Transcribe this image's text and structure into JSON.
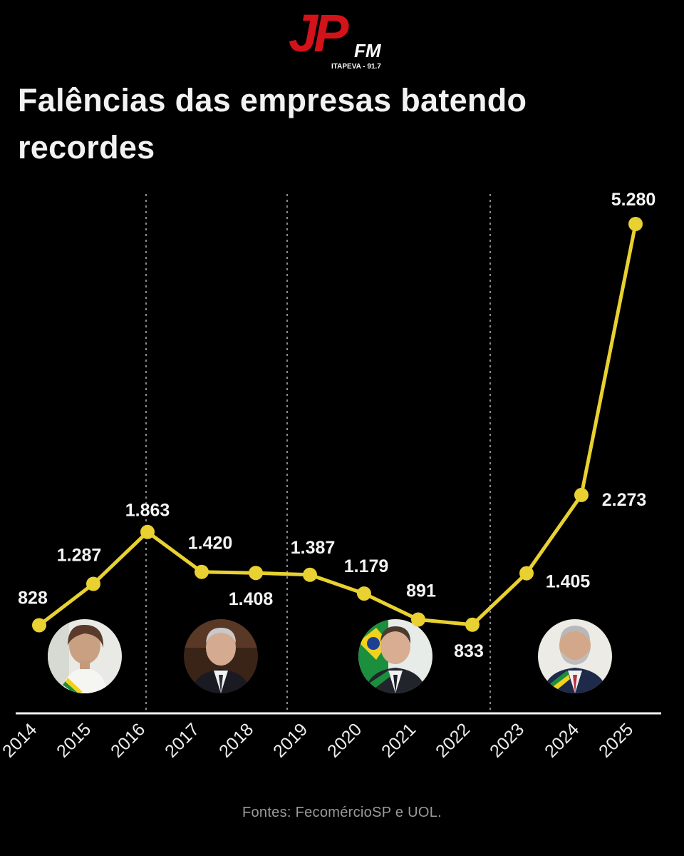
{
  "logo": {
    "letters": "JP",
    "fm": "FM",
    "station": "ITAPEVA - 91.7"
  },
  "title": "Falências das empresas batendo recordes",
  "source": "Fontes: FecomércioSP e UOL.",
  "colors": {
    "line": "#e8d130",
    "background": "#000000",
    "logo_red": "#d3121a"
  },
  "chart_data": {
    "type": "line",
    "title": "Falências das empresas batendo recordes",
    "categories": [
      "2014",
      "2015",
      "2016",
      "2017",
      "2018",
      "2019",
      "2020",
      "2021",
      "2022",
      "2023",
      "2024",
      "2025"
    ],
    "series": [
      {
        "values": [
          828,
          1287,
          1863,
          1420,
          1408,
          1387,
          1179,
          891,
          833,
          1405,
          2273,
          5280
        ]
      }
    ],
    "value_labels": [
      "828",
      "1.287",
      "1.863",
      "1.420",
      "1.408",
      "1.387",
      "1.179",
      "891",
      "833",
      "1.405",
      "2.273",
      "5.280"
    ],
    "ylim": [
      0,
      5280
    ],
    "axes_visible": {
      "y": false,
      "x_baseline": true
    },
    "grid": false,
    "period_dividers_after": [
      "2016",
      "2019",
      "2023"
    ],
    "portraits": [
      {
        "name": "portrait-dilma",
        "near": "2015"
      },
      {
        "name": "portrait-temer",
        "near": "2017"
      },
      {
        "name": "portrait-bolsonaro",
        "near": "2021"
      },
      {
        "name": "portrait-lula",
        "near": "2024"
      }
    ]
  }
}
